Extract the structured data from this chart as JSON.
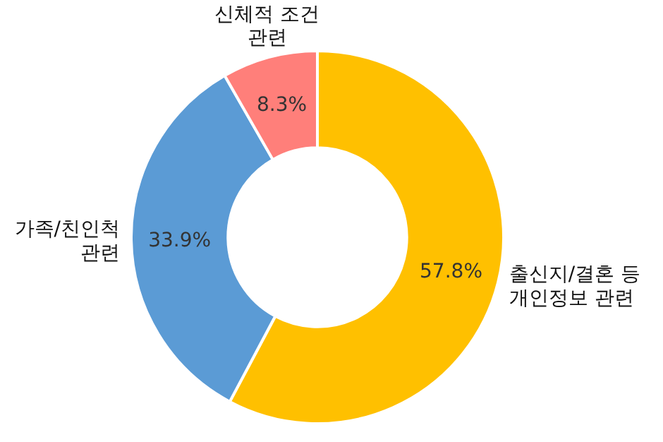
{
  "chart_data": {
    "type": "donut",
    "categories": [
      "출신지/결혼 등\n개인정보 관련",
      "가족/친인척\n관련",
      "신체적 조건\n관련"
    ],
    "values": [
      57.8,
      33.9,
      8.3
    ],
    "colors": [
      "#ffc000",
      "#5b9bd5",
      "#ff7f7a"
    ],
    "value_labels": [
      "57.8%",
      "33.9%",
      "8.3%"
    ]
  }
}
